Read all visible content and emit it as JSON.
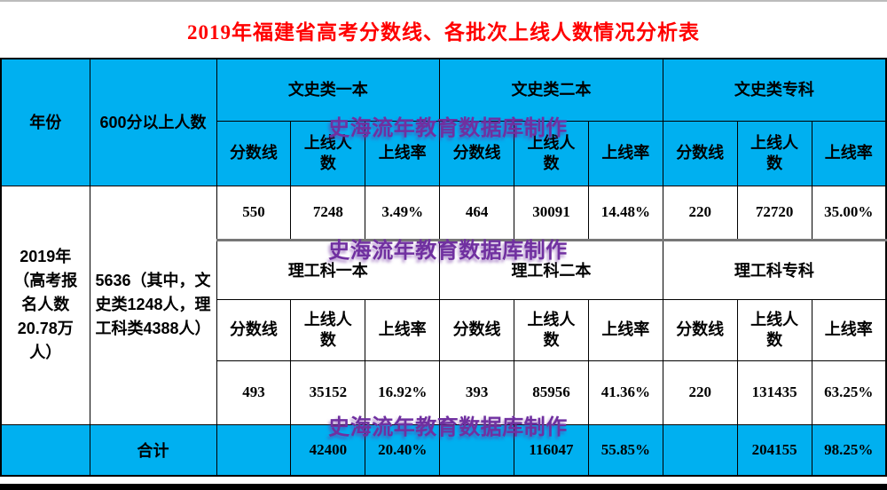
{
  "title": "2019年福建省高考分数线、各批次上线人数情况分析表",
  "watermark": {
    "text": "史海流年教育数据库制作"
  },
  "colors": {
    "accent_cyan": "#00b0f0",
    "title_red": "#ff0000",
    "watermark_purple": "#7030a0",
    "border_black": "#000000"
  },
  "header": {
    "year": "年份",
    "above_600": "600分以上人数",
    "groups_top": [
      "文史类一本",
      "文史类二本",
      "文史类专科"
    ],
    "groups_mid": [
      "理工科一本",
      "理工科二本",
      "理工科专科"
    ],
    "sub": [
      "分数线",
      "上线人数",
      "上线率"
    ]
  },
  "body": {
    "year_cell": "2019年（高考报名人数20.78万人）",
    "above600_cell": "5636（其中，文史类1248人，理工科类4388人）",
    "wenshi_values": [
      "550",
      "7248",
      "3.49%",
      "464",
      "30091",
      "14.48%",
      "220",
      "72720",
      "35.00%"
    ],
    "ligong_values": [
      "493",
      "35152",
      "16.92%",
      "393",
      "85956",
      "41.36%",
      "220",
      "131435",
      "63.25%"
    ],
    "total_label": "合计",
    "total_values": [
      "",
      "42400",
      "20.40%",
      "",
      "116047",
      "55.85%",
      "",
      "204155",
      "98.25%"
    ]
  }
}
